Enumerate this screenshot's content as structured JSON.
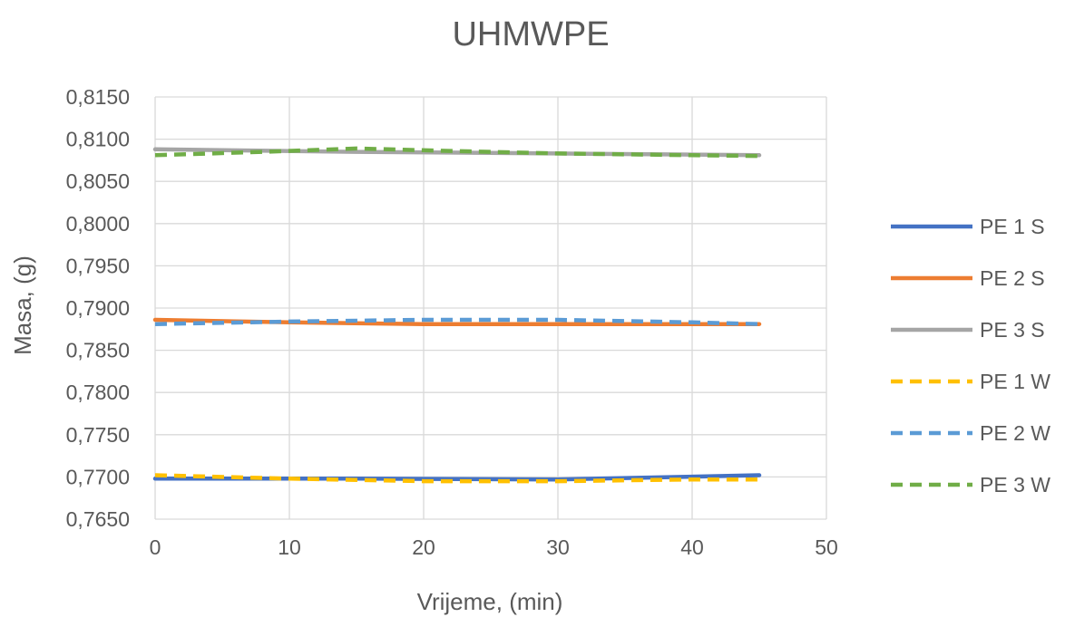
{
  "chart_data": {
    "type": "line",
    "title": "UHMWPE",
    "xlabel": "Vrijeme, (min)",
    "ylabel": "Masa, (g)",
    "xlim": [
      0,
      50
    ],
    "ylim": [
      0.765,
      0.815
    ],
    "x_ticks": [
      0,
      10,
      20,
      30,
      40,
      50
    ],
    "x_tick_labels": [
      "0",
      "10",
      "20",
      "30",
      "40",
      "50"
    ],
    "y_ticks": [
      0.765,
      0.77,
      0.775,
      0.78,
      0.785,
      0.79,
      0.795,
      0.8,
      0.805,
      0.81,
      0.815
    ],
    "y_tick_labels": [
      "0,7650",
      "0,7700",
      "0,7750",
      "0,7800",
      "0,7850",
      "0,7900",
      "0,7950",
      "0,8000",
      "0,8050",
      "0,8100",
      "0,8150"
    ],
    "grid": true,
    "legend_position": "right",
    "series": [
      {
        "name": "PE 1 S",
        "color": "#4472C4",
        "style": "solid",
        "points": [
          [
            0,
            0.7698
          ],
          [
            15,
            0.7698
          ],
          [
            30,
            0.7697
          ],
          [
            45,
            0.7702
          ]
        ]
      },
      {
        "name": "PE 2 S",
        "color": "#ED7D31",
        "style": "solid",
        "points": [
          [
            0,
            0.7886
          ],
          [
            10,
            0.7883
          ],
          [
            20,
            0.7881
          ],
          [
            30,
            0.7881
          ],
          [
            45,
            0.7881
          ]
        ]
      },
      {
        "name": "PE 3 S",
        "color": "#A5A5A5",
        "style": "solid",
        "points": [
          [
            0,
            0.8088
          ],
          [
            15,
            0.8085
          ],
          [
            30,
            0.8083
          ],
          [
            45,
            0.8081
          ]
        ]
      },
      {
        "name": "PE 1 W",
        "color": "#FFC000",
        "style": "dashed",
        "points": [
          [
            0,
            0.7702
          ],
          [
            10,
            0.7698
          ],
          [
            20,
            0.7695
          ],
          [
            30,
            0.7695
          ],
          [
            40,
            0.7697
          ],
          [
            45,
            0.7697
          ]
        ]
      },
      {
        "name": "PE 2 W",
        "color": "#5B9BD5",
        "style": "dashed",
        "points": [
          [
            0,
            0.7881
          ],
          [
            10,
            0.7884
          ],
          [
            20,
            0.7886
          ],
          [
            30,
            0.7886
          ],
          [
            40,
            0.7883
          ],
          [
            45,
            0.7881
          ]
        ]
      },
      {
        "name": "PE 3 W",
        "color": "#70AD47",
        "style": "dashed",
        "points": [
          [
            0,
            0.8081
          ],
          [
            8,
            0.8085
          ],
          [
            15,
            0.8089
          ],
          [
            22,
            0.8086
          ],
          [
            30,
            0.8083
          ],
          [
            45,
            0.808
          ]
        ]
      }
    ]
  }
}
